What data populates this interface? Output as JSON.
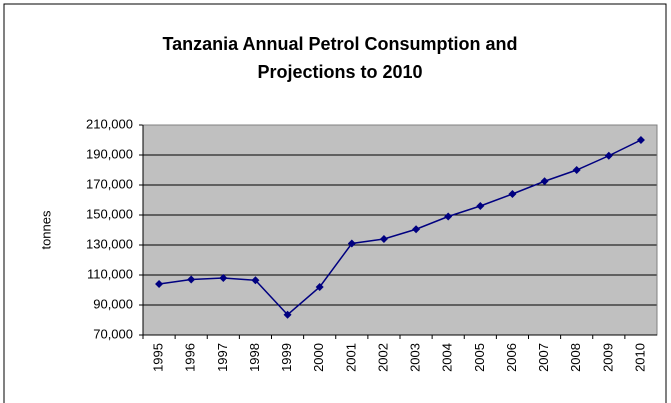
{
  "chart_data": {
    "type": "line",
    "title": "Tanzania Annual Petrol Consumption and",
    "subtitle": "Projections to 2010",
    "y_label": "tonnes",
    "categories": [
      "1995",
      "1996",
      "1997",
      "1998",
      "1999",
      "2000",
      "2001",
      "2002",
      "2003",
      "2004",
      "2005",
      "2006",
      "2007",
      "2008",
      "2009",
      "2010"
    ],
    "series": [
      {
        "name": "Petrol consumption",
        "color": "#000080",
        "values": [
          104000,
          107000,
          108000,
          106500,
          83500,
          102000,
          131000,
          134000,
          140500,
          149000,
          156000,
          164000,
          172500,
          180000,
          189500,
          200000
        ]
      }
    ],
    "ylim": [
      70000,
      210000
    ],
    "yticks": [
      {
        "value": 70000,
        "label": "70,000"
      },
      {
        "value": 90000,
        "label": "90,000"
      },
      {
        "value": 110000,
        "label": "110,000"
      },
      {
        "value": 130000,
        "label": "130,000"
      },
      {
        "value": 150000,
        "label": "150,000"
      },
      {
        "value": 170000,
        "label": "170,000"
      },
      {
        "value": 190000,
        "label": "190,000"
      },
      {
        "value": 210000,
        "label": "210,000"
      }
    ],
    "grid": true,
    "plot_background": "#c0c0c0"
  }
}
